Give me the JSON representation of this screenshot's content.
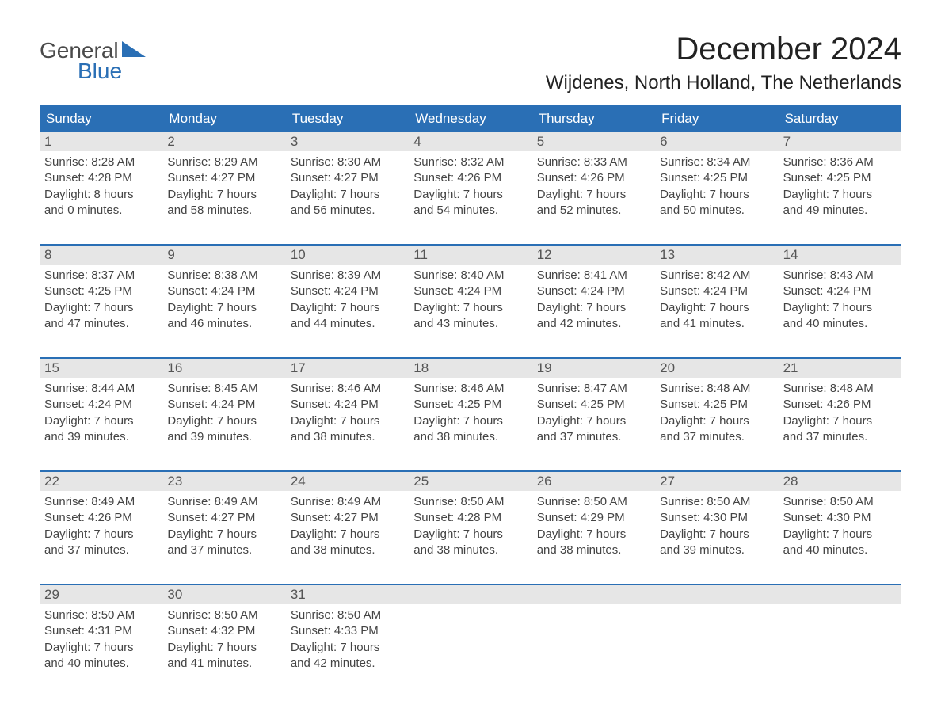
{
  "logo": {
    "text_general": "General",
    "text_blue": "Blue"
  },
  "title": "December 2024",
  "location": "Wijdenes, North Holland, The Netherlands",
  "styling": {
    "header_bg": "#2a6fb5",
    "header_fg": "#ffffff",
    "daynum_bg": "#e6e6e6",
    "daynum_fg": "#555555",
    "body_fg": "#444444",
    "week_border": "#2a6fb5",
    "title_fontsize": 40,
    "location_fontsize": 24,
    "weekday_fontsize": 17,
    "body_fontsize": 15
  },
  "weekdays": [
    "Sunday",
    "Monday",
    "Tuesday",
    "Wednesday",
    "Thursday",
    "Friday",
    "Saturday"
  ],
  "weeks": [
    [
      {
        "n": "1",
        "sr": "Sunrise: 8:28 AM",
        "ss": "Sunset: 4:28 PM",
        "d1": "Daylight: 8 hours",
        "d2": "and 0 minutes."
      },
      {
        "n": "2",
        "sr": "Sunrise: 8:29 AM",
        "ss": "Sunset: 4:27 PM",
        "d1": "Daylight: 7 hours",
        "d2": "and 58 minutes."
      },
      {
        "n": "3",
        "sr": "Sunrise: 8:30 AM",
        "ss": "Sunset: 4:27 PM",
        "d1": "Daylight: 7 hours",
        "d2": "and 56 minutes."
      },
      {
        "n": "4",
        "sr": "Sunrise: 8:32 AM",
        "ss": "Sunset: 4:26 PM",
        "d1": "Daylight: 7 hours",
        "d2": "and 54 minutes."
      },
      {
        "n": "5",
        "sr": "Sunrise: 8:33 AM",
        "ss": "Sunset: 4:26 PM",
        "d1": "Daylight: 7 hours",
        "d2": "and 52 minutes."
      },
      {
        "n": "6",
        "sr": "Sunrise: 8:34 AM",
        "ss": "Sunset: 4:25 PM",
        "d1": "Daylight: 7 hours",
        "d2": "and 50 minutes."
      },
      {
        "n": "7",
        "sr": "Sunrise: 8:36 AM",
        "ss": "Sunset: 4:25 PM",
        "d1": "Daylight: 7 hours",
        "d2": "and 49 minutes."
      }
    ],
    [
      {
        "n": "8",
        "sr": "Sunrise: 8:37 AM",
        "ss": "Sunset: 4:25 PM",
        "d1": "Daylight: 7 hours",
        "d2": "and 47 minutes."
      },
      {
        "n": "9",
        "sr": "Sunrise: 8:38 AM",
        "ss": "Sunset: 4:24 PM",
        "d1": "Daylight: 7 hours",
        "d2": "and 46 minutes."
      },
      {
        "n": "10",
        "sr": "Sunrise: 8:39 AM",
        "ss": "Sunset: 4:24 PM",
        "d1": "Daylight: 7 hours",
        "d2": "and 44 minutes."
      },
      {
        "n": "11",
        "sr": "Sunrise: 8:40 AM",
        "ss": "Sunset: 4:24 PM",
        "d1": "Daylight: 7 hours",
        "d2": "and 43 minutes."
      },
      {
        "n": "12",
        "sr": "Sunrise: 8:41 AM",
        "ss": "Sunset: 4:24 PM",
        "d1": "Daylight: 7 hours",
        "d2": "and 42 minutes."
      },
      {
        "n": "13",
        "sr": "Sunrise: 8:42 AM",
        "ss": "Sunset: 4:24 PM",
        "d1": "Daylight: 7 hours",
        "d2": "and 41 minutes."
      },
      {
        "n": "14",
        "sr": "Sunrise: 8:43 AM",
        "ss": "Sunset: 4:24 PM",
        "d1": "Daylight: 7 hours",
        "d2": "and 40 minutes."
      }
    ],
    [
      {
        "n": "15",
        "sr": "Sunrise: 8:44 AM",
        "ss": "Sunset: 4:24 PM",
        "d1": "Daylight: 7 hours",
        "d2": "and 39 minutes."
      },
      {
        "n": "16",
        "sr": "Sunrise: 8:45 AM",
        "ss": "Sunset: 4:24 PM",
        "d1": "Daylight: 7 hours",
        "d2": "and 39 minutes."
      },
      {
        "n": "17",
        "sr": "Sunrise: 8:46 AM",
        "ss": "Sunset: 4:24 PM",
        "d1": "Daylight: 7 hours",
        "d2": "and 38 minutes."
      },
      {
        "n": "18",
        "sr": "Sunrise: 8:46 AM",
        "ss": "Sunset: 4:25 PM",
        "d1": "Daylight: 7 hours",
        "d2": "and 38 minutes."
      },
      {
        "n": "19",
        "sr": "Sunrise: 8:47 AM",
        "ss": "Sunset: 4:25 PM",
        "d1": "Daylight: 7 hours",
        "d2": "and 37 minutes."
      },
      {
        "n": "20",
        "sr": "Sunrise: 8:48 AM",
        "ss": "Sunset: 4:25 PM",
        "d1": "Daylight: 7 hours",
        "d2": "and 37 minutes."
      },
      {
        "n": "21",
        "sr": "Sunrise: 8:48 AM",
        "ss": "Sunset: 4:26 PM",
        "d1": "Daylight: 7 hours",
        "d2": "and 37 minutes."
      }
    ],
    [
      {
        "n": "22",
        "sr": "Sunrise: 8:49 AM",
        "ss": "Sunset: 4:26 PM",
        "d1": "Daylight: 7 hours",
        "d2": "and 37 minutes."
      },
      {
        "n": "23",
        "sr": "Sunrise: 8:49 AM",
        "ss": "Sunset: 4:27 PM",
        "d1": "Daylight: 7 hours",
        "d2": "and 37 minutes."
      },
      {
        "n": "24",
        "sr": "Sunrise: 8:49 AM",
        "ss": "Sunset: 4:27 PM",
        "d1": "Daylight: 7 hours",
        "d2": "and 38 minutes."
      },
      {
        "n": "25",
        "sr": "Sunrise: 8:50 AM",
        "ss": "Sunset: 4:28 PM",
        "d1": "Daylight: 7 hours",
        "d2": "and 38 minutes."
      },
      {
        "n": "26",
        "sr": "Sunrise: 8:50 AM",
        "ss": "Sunset: 4:29 PM",
        "d1": "Daylight: 7 hours",
        "d2": "and 38 minutes."
      },
      {
        "n": "27",
        "sr": "Sunrise: 8:50 AM",
        "ss": "Sunset: 4:30 PM",
        "d1": "Daylight: 7 hours",
        "d2": "and 39 minutes."
      },
      {
        "n": "28",
        "sr": "Sunrise: 8:50 AM",
        "ss": "Sunset: 4:30 PM",
        "d1": "Daylight: 7 hours",
        "d2": "and 40 minutes."
      }
    ],
    [
      {
        "n": "29",
        "sr": "Sunrise: 8:50 AM",
        "ss": "Sunset: 4:31 PM",
        "d1": "Daylight: 7 hours",
        "d2": "and 40 minutes."
      },
      {
        "n": "30",
        "sr": "Sunrise: 8:50 AM",
        "ss": "Sunset: 4:32 PM",
        "d1": "Daylight: 7 hours",
        "d2": "and 41 minutes."
      },
      {
        "n": "31",
        "sr": "Sunrise: 8:50 AM",
        "ss": "Sunset: 4:33 PM",
        "d1": "Daylight: 7 hours",
        "d2": "and 42 minutes."
      },
      null,
      null,
      null,
      null
    ]
  ]
}
